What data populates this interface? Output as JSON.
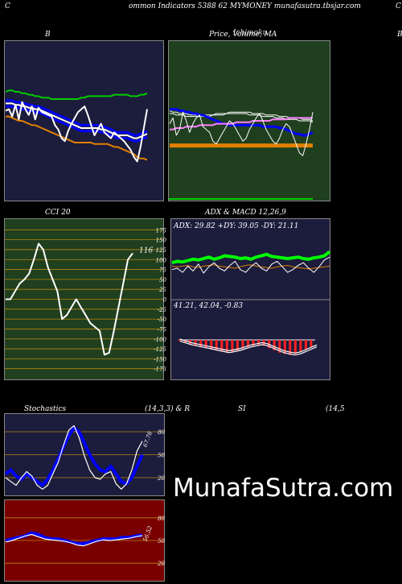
{
  "header": {
    "left": "C",
    "main": "ommon  Indicators 5388                  62  MYMONEY munafasutra.tbsjar.com",
    "right": "C"
  },
  "titles": {
    "bb": "B",
    "price": "Price,  Volume,  MA",
    "price_overlap": "Ichimoku",
    "right_edge": "B",
    "cci": "CCI 20",
    "adx": "ADX  & MACD 12,26,9",
    "stoch_left": "Stochastics",
    "stoch_mid": "(14,3,3) & R",
    "stoch_si": "SI",
    "stoch_right": "(14,5"
  },
  "watermark": "MunafaSutra.com",
  "colors": {
    "bb_bg": "#1c1c3c",
    "price_bg": "#1f3f1f",
    "cci_bg": "#1f3f1f",
    "adx_bg": "#1c1c3c",
    "stoch_bg": "#1c1c3c",
    "rsi_bg": "#7a0000",
    "white": "#ffffff",
    "blue": "#0000ff",
    "green": "#00cc00",
    "orange": "#e08000",
    "gridline": "#b8860b",
    "red": "#ff2020"
  },
  "chart_data": [
    {
      "id": "bb",
      "type": "line",
      "title": "B",
      "ylim": [
        0,
        100
      ],
      "series": [
        {
          "color": "#00cc00",
          "values": [
            70,
            71,
            71,
            70,
            70,
            69,
            69,
            68,
            68,
            67,
            67,
            66,
            66,
            66,
            65,
            65,
            65,
            65,
            65,
            65,
            65,
            65,
            65,
            66,
            66,
            67,
            67,
            67,
            67,
            67,
            67,
            67,
            67,
            68,
            68,
            68,
            68,
            68,
            67,
            67,
            67,
            68,
            68,
            69
          ]
        },
        {
          "color": "#0000ff",
          "values": [
            64,
            64,
            64,
            63,
            63,
            62,
            62,
            61,
            61,
            60,
            60,
            59,
            58,
            57,
            56,
            55,
            54,
            53,
            52,
            51,
            50,
            49,
            48,
            47,
            47,
            47,
            47,
            47,
            47,
            46,
            46,
            45,
            44,
            43,
            42,
            42,
            42,
            42,
            41,
            40,
            40,
            41,
            42,
            43
          ]
        },
        {
          "color": "#ffffff",
          "values": [
            62,
            62,
            62,
            61,
            61,
            60,
            60,
            59,
            59,
            58,
            58,
            57,
            56,
            55,
            54,
            53,
            52,
            51,
            50,
            49,
            48,
            47,
            46,
            45,
            45,
            45,
            45,
            45,
            45,
            44,
            44,
            43,
            42,
            41,
            40,
            40,
            40,
            40,
            39,
            38,
            38,
            39,
            40,
            41
          ]
        },
        {
          "color": "#0000ff",
          "values": [
            60,
            60,
            60,
            59,
            59,
            58,
            58,
            57,
            57,
            56,
            56,
            55,
            54,
            53,
            52,
            51,
            50,
            49,
            48,
            47,
            46,
            45,
            44,
            43,
            43,
            43,
            43,
            43,
            43,
            42,
            42,
            41,
            40,
            39,
            38,
            38,
            38,
            38,
            37,
            36,
            36,
            37,
            38,
            39
          ]
        },
        {
          "color": "#e08000",
          "values": [
            53,
            53,
            52,
            51,
            50,
            50,
            49,
            48,
            47,
            47,
            46,
            45,
            44,
            43,
            42,
            41,
            40,
            39,
            38,
            37,
            36,
            35,
            35,
            35,
            35,
            35,
            35,
            34,
            34,
            34,
            34,
            34,
            33,
            32,
            32,
            31,
            30,
            29,
            28,
            27,
            25,
            24,
            24,
            23
          ]
        },
        {
          "color": "#ffffff",
          "values": [
            57,
            58,
            53,
            61,
            51,
            63,
            58,
            54,
            60,
            51,
            59,
            56,
            55,
            54,
            53,
            47,
            44,
            38,
            36,
            43,
            48,
            52,
            56,
            58,
            60,
            54,
            47,
            40,
            44,
            48,
            42,
            40,
            38,
            42,
            40,
            38,
            36,
            33,
            30,
            25,
            22,
            32,
            45,
            58
          ]
        }
      ]
    },
    {
      "id": "price",
      "type": "line",
      "title": "Price,  Volume,  MA",
      "ylim": [
        0,
        100
      ],
      "series": [
        {
          "color": "#ffffff",
          "values": [
            57,
            56,
            56,
            55,
            55,
            55,
            54,
            54,
            54,
            54,
            54,
            54,
            54,
            54,
            55,
            55,
            55,
            55,
            56,
            56,
            56,
            56,
            56,
            56,
            56,
            55,
            55,
            55,
            55,
            54,
            54,
            54,
            54,
            53,
            53,
            53,
            52,
            52,
            52,
            52,
            51,
            51,
            51,
            50
          ]
        },
        {
          "color": "#ffffff",
          "values": [
            55,
            55,
            54,
            54,
            54,
            53,
            53,
            53,
            53,
            53,
            53,
            53,
            53,
            54,
            54,
            54,
            54,
            55,
            55,
            55,
            55,
            55,
            55,
            55,
            54,
            54,
            54,
            54,
            53,
            53,
            53,
            53,
            52,
            52,
            52,
            51,
            51,
            51,
            51,
            50,
            50,
            50,
            50,
            49
          ]
        },
        {
          "color": "#0000ff",
          "values": [
            58,
            58,
            58,
            57,
            57,
            56,
            56,
            55,
            55,
            54,
            54,
            53,
            52,
            51,
            50,
            49,
            48,
            48,
            47,
            47,
            47,
            47,
            47,
            47,
            47,
            47,
            47,
            47,
            46,
            46,
            46,
            46,
            46,
            45,
            45,
            44,
            43,
            42,
            41,
            41,
            40,
            40,
            41,
            42
          ]
        },
        {
          "color": "#ff80ff",
          "values": [
            44,
            44,
            45,
            45,
            45,
            46,
            46,
            46,
            46,
            47,
            47,
            47,
            47,
            47,
            48,
            48,
            48,
            48,
            48,
            48,
            49,
            49,
            49,
            49,
            49,
            50,
            50,
            50,
            50,
            50,
            50,
            51,
            51,
            51,
            51,
            51,
            52,
            52,
            52,
            52,
            52,
            52,
            52,
            52
          ]
        },
        {
          "color": "#e08000",
          "values": [
            33,
            33,
            33,
            33,
            33,
            33,
            33,
            33,
            33,
            33,
            33,
            33,
            33,
            33,
            33,
            33,
            33,
            33,
            33,
            33,
            33,
            33,
            33,
            33,
            33,
            33,
            33,
            33,
            33,
            33,
            33,
            33,
            33,
            33,
            33,
            33,
            33,
            33,
            33,
            33,
            33,
            33,
            33,
            33
          ]
        },
        {
          "color": "#ffffff",
          "values": [
            48,
            52,
            40,
            44,
            56,
            50,
            42,
            48,
            52,
            54,
            46,
            44,
            42,
            36,
            34,
            38,
            42,
            46,
            50,
            48,
            44,
            40,
            36,
            38,
            44,
            48,
            52,
            55,
            50,
            44,
            40,
            36,
            34,
            38,
            44,
            48,
            46,
            40,
            34,
            28,
            26,
            34,
            44,
            56
          ]
        }
      ]
    },
    {
      "id": "cci",
      "type": "line",
      "title": "CCI 20",
      "ylim": [
        -200,
        200
      ],
      "ticks": [
        "175",
        "150",
        "125",
        "100",
        "75",
        "50",
        "25",
        "0",
        "-25",
        "-50",
        "-75",
        "-100",
        "-125",
        "-150",
        "-175"
      ],
      "last_label": "116",
      "values": [
        0,
        0,
        20,
        40,
        50,
        65,
        100,
        140,
        125,
        80,
        50,
        20,
        -50,
        -40,
        -20,
        0,
        -20,
        -40,
        -60,
        -70,
        -80,
        -140,
        -135,
        -80,
        -20,
        40,
        100,
        116
      ]
    },
    {
      "id": "adx",
      "type": "line",
      "title": "ADX  & MACD 12,26,9",
      "readout": "ADX: 29.82   +DY: 39.05 -DY: 21.11",
      "series": [
        {
          "color": "#00ff00",
          "values": [
            50,
            52,
            51,
            53,
            55,
            54,
            56,
            58,
            55,
            57,
            60,
            59,
            58,
            56,
            57,
            55,
            58,
            60,
            62,
            59,
            58,
            57,
            56,
            57,
            58,
            56,
            55,
            57,
            58,
            60,
            66
          ]
        },
        {
          "color": "#e08000",
          "values": [
            45,
            44,
            45,
            46,
            44,
            43,
            45,
            46,
            47,
            45,
            44,
            43,
            42,
            44,
            46,
            47,
            45,
            44,
            43,
            42,
            44,
            45,
            46,
            44,
            43,
            42,
            41,
            42,
            43,
            44,
            45
          ]
        },
        {
          "color": "#ffffff",
          "values": [
            40,
            42,
            36,
            45,
            38,
            48,
            35,
            44,
            50,
            42,
            38,
            46,
            52,
            40,
            36,
            44,
            50,
            42,
            38,
            48,
            52,
            44,
            36,
            40,
            46,
            50,
            42,
            36,
            44,
            54,
            58
          ]
        }
      ]
    },
    {
      "id": "macd",
      "type": "bar",
      "readout": "41.21,  42.04,  -0.83",
      "values": [
        -2,
        -5,
        -8,
        -10,
        -12,
        -14,
        -16,
        -18,
        -20,
        -22,
        -20,
        -18,
        -15,
        -12,
        -10,
        -8,
        -10,
        -14,
        -18,
        -22,
        -24,
        -26,
        -24,
        -20,
        -16,
        -12
      ]
    },
    {
      "id": "stoch",
      "type": "line",
      "title": "Stochastics",
      "ylim": [
        0,
        100
      ],
      "ticks": [
        "80",
        "50",
        "20"
      ],
      "last_label": "67.78",
      "series": [
        {
          "color": "#0000ff",
          "values": [
            25,
            30,
            22,
            18,
            25,
            20,
            15,
            10,
            18,
            30,
            45,
            60,
            75,
            85,
            80,
            65,
            50,
            38,
            30,
            28,
            35,
            25,
            15,
            12,
            20,
            35,
            50
          ]
        },
        {
          "color": "#ffffff",
          "values": [
            20,
            15,
            10,
            20,
            28,
            22,
            10,
            5,
            10,
            25,
            40,
            62,
            82,
            88,
            72,
            48,
            30,
            20,
            18,
            25,
            28,
            12,
            5,
            12,
            30,
            55,
            67.78
          ]
        }
      ]
    },
    {
      "id": "rsi",
      "type": "line",
      "title": "SI",
      "ylim": [
        0,
        100
      ],
      "ticks": [
        "80",
        "50",
        "20"
      ],
      "last_label": "56.52",
      "series": [
        {
          "color": "#0000ff",
          "values": [
            50,
            52,
            54,
            56,
            60,
            58,
            54,
            52,
            52,
            50,
            48,
            46,
            46,
            48,
            50,
            52,
            52,
            52,
            54,
            54,
            56,
            57
          ]
        },
        {
          "color": "#ffffff",
          "values": [
            48,
            50,
            53,
            56,
            58,
            55,
            52,
            51,
            50,
            49,
            47,
            44,
            43,
            46,
            49,
            51,
            50,
            51,
            52,
            53,
            55,
            56.52
          ]
        }
      ]
    }
  ]
}
